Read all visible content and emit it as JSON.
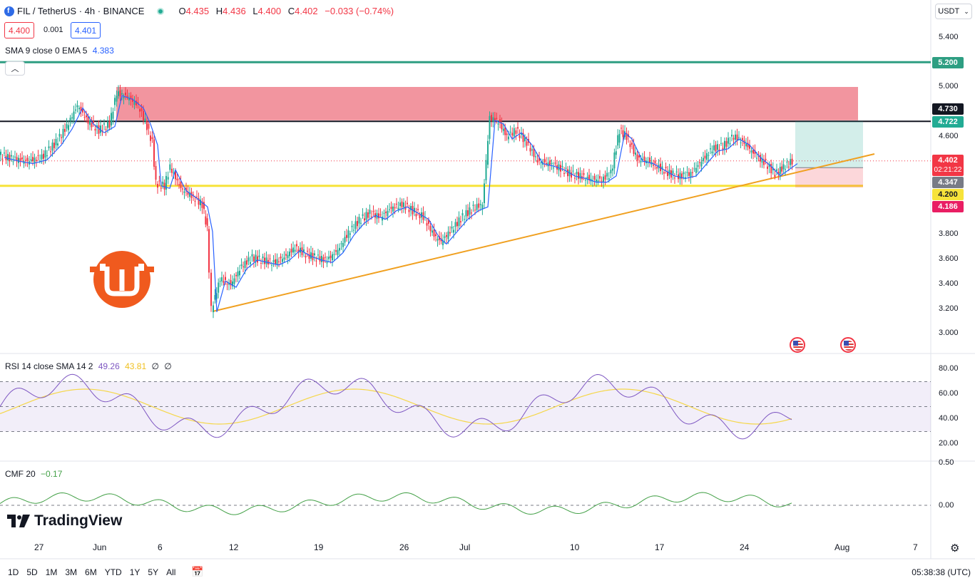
{
  "header": {
    "symbol": "FIL / TetherUS · 4h · BINANCE",
    "open_label": "O",
    "open": "4.435",
    "high_label": "H",
    "high": "4.436",
    "low_label": "L",
    "low": "4.400",
    "close_label": "C",
    "close": "4.402",
    "change": "−0.033 (−0.74%)",
    "bid": "4.400",
    "spread": "0.001",
    "ask": "4.401"
  },
  "indicators": {
    "sma_label": "SMA 9 close 0 EMA 5",
    "sma_value": "4.383",
    "rsi_label": "RSI 14 close SMA 14 2",
    "rsi_value": "49.26",
    "rsi_sma_value": "43.81",
    "rsi_extra1": "∅",
    "rsi_extra2": "∅",
    "cmf_label": "CMF 20",
    "cmf_value": "−0.17"
  },
  "currency_button": "USDT",
  "price_axis": [
    "5.400",
    "5.000",
    "4.600",
    "4.200",
    "3.800",
    "3.600",
    "3.400",
    "3.200",
    "3.000"
  ],
  "price_labels": {
    "p5200": "5.200",
    "p4730": "4.730",
    "p4722": "4.722",
    "p4402": "4.402",
    "countdown": "02:21:22",
    "p4347": "4.347",
    "p4200": "4.200",
    "p4186": "4.186"
  },
  "rsi_axis": [
    "80.00",
    "60.00",
    "40.00",
    "20.00"
  ],
  "cmf_axis": [
    "0.50",
    "0.00"
  ],
  "time_axis": [
    "27",
    "Jun",
    "6",
    "12",
    "19",
    "26",
    "Jul",
    "10",
    "17",
    "24",
    "Aug",
    "7"
  ],
  "timeframes": [
    "1D",
    "5D",
    "1M",
    "3M",
    "6M",
    "YTD",
    "1Y",
    "5Y",
    "All"
  ],
  "clock": "05:38:38 (UTC)",
  "brand": "TradingView",
  "colors": {
    "up": "#22ab94",
    "down": "#f23645",
    "sma": "#2962ff",
    "resistance_zone": "#f0828e",
    "support_line": "#f7e33a",
    "trendline": "#f0a020",
    "level_5200": "#2e9e82",
    "rsi": "#7e57c2",
    "rsi_sma": "#f5d74a",
    "cmf": "#43a047",
    "logo": "#f05a1e"
  }
}
